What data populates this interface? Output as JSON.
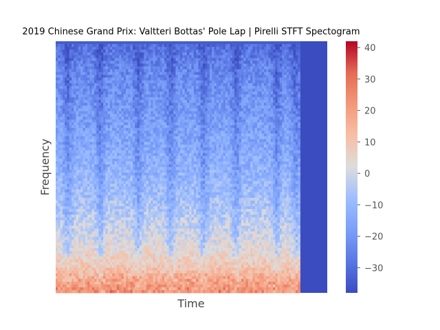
{
  "chart_data": {
    "type": "heatmap",
    "title": "2019 Chinese Grand Prix: Valtteri Bottas' Pole Lap | Pirelli STFT Spectogram",
    "xlabel": "Time",
    "ylabel": "Frequency",
    "x_ticks_shown": false,
    "y_ticks_shown": false,
    "grid": false,
    "colormap": "coolwarm",
    "colorbar": {
      "range": [
        -38,
        42
      ],
      "ticks": [
        40,
        30,
        20,
        10,
        0,
        -10,
        -20,
        -30
      ],
      "tick_labels": [
        "40",
        "30",
        "20",
        "10",
        "0",
        "−10",
        "−20",
        "−30"
      ]
    },
    "signal_end_fraction": 0.9,
    "silence_value": -38,
    "dark_time_bands": [
      0.04,
      0.16,
      0.3,
      0.42,
      0.54,
      0.66,
      0.81,
      0.88
    ],
    "value_profile": {
      "description_levels": "typical dB level by frequency fraction (0 = lowest frequency)",
      "frequency_fraction": [
        0.0,
        0.1,
        0.2,
        0.35,
        0.5,
        0.7,
        0.9,
        1.0
      ],
      "db": [
        22,
        10,
        2,
        -6,
        -12,
        -18,
        -24,
        -30
      ]
    },
    "colors": {
      "low": "#3b4cc0",
      "mid": "#dddddd",
      "high": "#b40426"
    }
  }
}
